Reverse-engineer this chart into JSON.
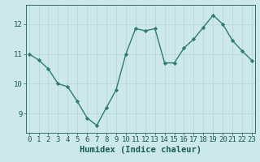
{
  "x": [
    0,
    1,
    2,
    3,
    4,
    5,
    6,
    7,
    8,
    9,
    10,
    11,
    12,
    13,
    14,
    15,
    16,
    17,
    18,
    19,
    20,
    21,
    22,
    23
  ],
  "y": [
    11.0,
    10.8,
    10.5,
    10.0,
    9.9,
    9.4,
    8.85,
    8.6,
    9.2,
    9.8,
    11.0,
    11.85,
    11.78,
    11.85,
    10.7,
    10.7,
    11.2,
    11.5,
    11.9,
    12.3,
    12.0,
    11.45,
    11.1,
    10.78
  ],
  "line_color": "#2e7d6e",
  "marker": "D",
  "marker_size": 2.2,
  "bg_color": "#cce8e8",
  "grid_color": "#b8d8d8",
  "xlabel": "Humidex (Indice chaleur)",
  "xlabel_fontsize": 7.5,
  "yticks": [
    9,
    10,
    11,
    12
  ],
  "xticks": [
    0,
    1,
    2,
    3,
    4,
    5,
    6,
    7,
    8,
    9,
    10,
    11,
    12,
    13,
    14,
    15,
    16,
    17,
    18,
    19,
    20,
    21,
    22,
    23
  ],
  "xlim": [
    -0.3,
    23.3
  ],
  "ylim": [
    8.35,
    12.65
  ],
  "tick_fontsize": 6.5,
  "line_width": 1.0,
  "axis_color": "#1a5c52"
}
